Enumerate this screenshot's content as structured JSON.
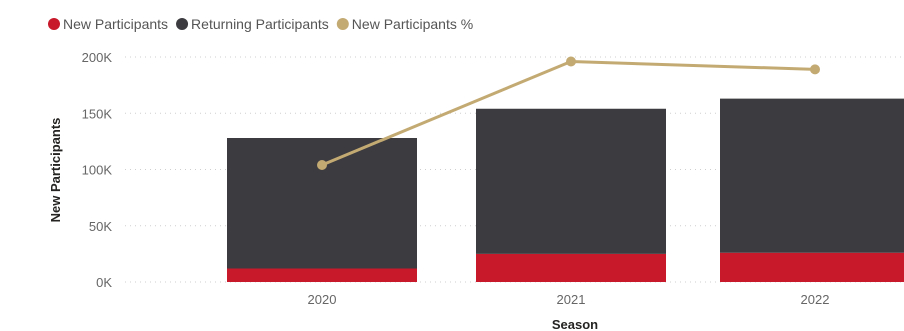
{
  "chart_data": {
    "type": "bar",
    "stacked": true,
    "categories": [
      "2020",
      "2021",
      "2022"
    ],
    "series": [
      {
        "name": "New Participants",
        "color": "#c8192b",
        "values": [
          12000,
          25000,
          26000
        ]
      },
      {
        "name": "Returning Participants",
        "color": "#3c3b3f",
        "values": [
          116000,
          129000,
          137000
        ]
      },
      {
        "name": "New Participants %",
        "type": "line",
        "color": "#c3aa73",
        "values": [
          104000,
          196000,
          189000
        ]
      }
    ],
    "xlabel": "Season",
    "ylabel": "New Participants",
    "yticks": [
      "0K",
      "50K",
      "100K",
      "150K",
      "200K"
    ],
    "ylim": [
      0,
      200000
    ],
    "grid": true,
    "legend_position": "top-left"
  }
}
